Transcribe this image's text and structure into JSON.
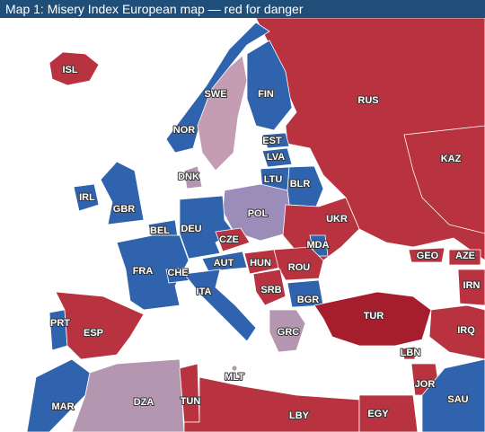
{
  "title": "Map 1: Misery Index European map — red for danger",
  "countries": [
    {
      "label": "RUS",
      "color": "#b8323f"
    },
    {
      "label": "KAZ",
      "color": "#b8323f"
    },
    {
      "label": "ISL",
      "color": "#b8323f"
    },
    {
      "label": "NOR",
      "color": "#2f63ad"
    },
    {
      "label": "SWE",
      "color": "#c49db2"
    },
    {
      "label": "FIN",
      "color": "#2f63ad"
    },
    {
      "label": "EST",
      "color": "#2f63ad"
    },
    {
      "label": "LVA",
      "color": "#2f63ad"
    },
    {
      "label": "LTU",
      "color": "#2f63ad"
    },
    {
      "label": "BLR",
      "color": "#2f63ad"
    },
    {
      "label": "DNK",
      "color": "#b496b0"
    },
    {
      "label": "IRL",
      "color": "#2f63ad"
    },
    {
      "label": "GBR",
      "color": "#2f63ad"
    },
    {
      "label": "POL",
      "color": "#9c8cb9"
    },
    {
      "label": "DEU",
      "color": "#2f63ad"
    },
    {
      "label": "BEL",
      "color": "#2f63ad"
    },
    {
      "label": "FRA",
      "color": "#2f63ad"
    },
    {
      "label": "CHE",
      "color": "#2f63ad"
    },
    {
      "label": "CZE",
      "color": "#b8323f"
    },
    {
      "label": "AUT",
      "color": "#2f63ad"
    },
    {
      "label": "HUN",
      "color": "#b8323f"
    },
    {
      "label": "UKR",
      "color": "#b8323f"
    },
    {
      "label": "MDA",
      "color": "#2f63ad"
    },
    {
      "label": "ROU",
      "color": "#b8323f"
    },
    {
      "label": "SRB",
      "color": "#b8323f"
    },
    {
      "label": "BGR",
      "color": "#2f63ad"
    },
    {
      "label": "ITA",
      "color": "#2f63ad"
    },
    {
      "label": "GRC",
      "color": "#b496b0"
    },
    {
      "label": "TUR",
      "color": "#a61e2e"
    },
    {
      "label": "GEO",
      "color": "#b8323f"
    },
    {
      "label": "AZE",
      "color": "#b8323f"
    },
    {
      "label": "IRN",
      "color": "#b8323f"
    },
    {
      "label": "IRQ",
      "color": "#b8323f"
    },
    {
      "label": "LBN",
      "color": "#b8323f"
    },
    {
      "label": "JOR",
      "color": "#b8323f"
    },
    {
      "label": "SAU",
      "color": "#2f63ad"
    },
    {
      "label": "PRT",
      "color": "#2f63ad"
    },
    {
      "label": "ESP",
      "color": "#b8323f"
    },
    {
      "label": "MAR",
      "color": "#2f63ad"
    },
    {
      "label": "DZA",
      "color": "#b496b0"
    },
    {
      "label": "TUN",
      "color": "#b8323f"
    },
    {
      "label": "LBY",
      "color": "#b8323f"
    },
    {
      "label": "EGY",
      "color": "#b8323f"
    },
    {
      "label": "MLT",
      "color": "#b496b0"
    }
  ]
}
